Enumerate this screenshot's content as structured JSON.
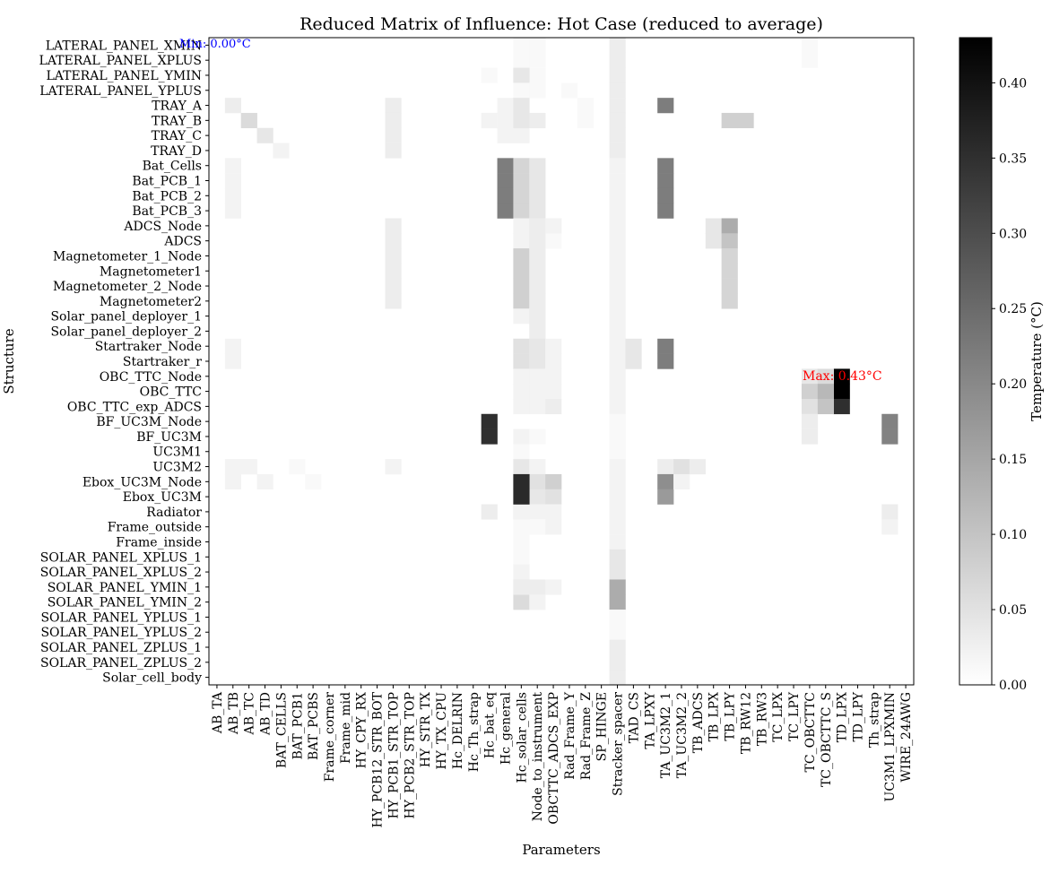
{
  "chart_data": {
    "type": "heatmap",
    "title": "Reduced Matrix of Influence: Hot Case (reduced to average)",
    "xlabel": "Parameters",
    "ylabel": "Structure",
    "colorbar_label": "Temperature (°C)",
    "colormap": "greys",
    "vmin": 0.0,
    "vmax": 0.43,
    "colorbar_ticks": [
      "0.00",
      "0.05",
      "0.10",
      "0.15",
      "0.20",
      "0.25",
      "0.30",
      "0.35",
      "0.40"
    ],
    "min_annotation": "Min: 0.00°C",
    "max_annotation": "Max: 0.43°C",
    "min_color": "#0000ff",
    "max_color": "#ff0000",
    "rows": [
      "LATERAL_PANEL_XMIN",
      "LATERAL_PANEL_XPLUS",
      "LATERAL_PANEL_YMIN",
      "LATERAL_PANEL_YPLUS",
      "TRAY_A",
      "TRAY_B",
      "TRAY_C",
      "TRAY_D",
      "Bat_Cells",
      "Bat_PCB_1",
      "Bat_PCB_2",
      "Bat_PCB_3",
      "ADCS_Node",
      "ADCS",
      "Magnetometer_1_Node",
      "Magnetometer1",
      "Magnetometer_2_Node",
      "Magnetometer2",
      "Solar_panel_deployer_1",
      "Solar_panel_deployer_2",
      "Startraker_Node",
      "Startraker_r",
      "OBC_TTC_Node",
      "OBC_TTC",
      "OBC_TTC_exp_ADCS",
      "BF_UC3M_Node",
      "BF_UC3M",
      "UC3M1",
      "UC3M2",
      "Ebox_UC3M_Node",
      "Ebox_UC3M",
      "Radiator",
      "Frame_outside",
      "Frame_inside",
      "SOLAR_PANEL_XPLUS_1",
      "SOLAR_PANEL_XPLUS_2",
      "SOLAR_PANEL_YMIN_1",
      "SOLAR_PANEL_YMIN_2",
      "SOLAR_PANEL_YPLUS_1",
      "SOLAR_PANEL_YPLUS_2",
      "SOLAR_PANEL_ZPLUS_1",
      "SOLAR_PANEL_ZPLUS_2",
      "Solar_cell_body"
    ],
    "columns": [
      "AB_TA",
      "AB_TB",
      "AB_TC",
      "AB_TD",
      "BAT_CELLS",
      "BAT_PCB1",
      "BAT_PCBS",
      "Frame_corner",
      "Frame_mid",
      "HY_CPY_RX",
      "HY_PCB12_STR_BOT",
      "HY_PCB1_STR_TOP",
      "HY_PCB2_STR_TOP",
      "HY_STR_TX",
      "HY_TX_CPU",
      "Hc_DELRIN",
      "Hc_Th_strap",
      "Hc_bat_eq",
      "Hc_general",
      "Hc_solar_cells",
      "Node_to_instrument",
      "OBCTTC_ADCS_EXP",
      "Rad_Frame_Y",
      "Rad_Frame_Z",
      "SP_HINGE",
      "Stracker_spacer",
      "TAD_CS",
      "TA_LPXY",
      "TA_UC3M2_1",
      "TA_UC3M2_2",
      "TB_ADCS",
      "TB_LPX",
      "TB_LPY",
      "TB_RW12",
      "TB_RW3",
      "TC_LPX",
      "TC_LPY",
      "TC_OBCTTC",
      "TC_OBCTTC_S",
      "TD_LPX",
      "TD_LPY",
      "Th_strap",
      "UC3M1_LPXMIN",
      "WIRE_24AWG"
    ],
    "cells": [
      [
        0,
        20,
        0.01
      ],
      [
        1,
        20,
        0.01
      ],
      [
        2,
        20,
        0.01
      ],
      [
        3,
        20,
        0.01
      ],
      [
        0,
        25,
        0.03
      ],
      [
        1,
        25,
        0.03
      ],
      [
        2,
        25,
        0.03
      ],
      [
        3,
        25,
        0.03
      ],
      [
        4,
        25,
        0.03
      ],
      [
        5,
        25,
        0.03
      ],
      [
        6,
        25,
        0.03
      ],
      [
        7,
        25,
        0.03
      ],
      [
        8,
        25,
        0.02
      ],
      [
        9,
        25,
        0.02
      ],
      [
        10,
        25,
        0.02
      ],
      [
        11,
        25,
        0.02
      ],
      [
        12,
        25,
        0.02
      ],
      [
        13,
        25,
        0.02
      ],
      [
        14,
        25,
        0.02
      ],
      [
        15,
        25,
        0.02
      ],
      [
        16,
        25,
        0.02
      ],
      [
        17,
        25,
        0.02
      ],
      [
        18,
        25,
        0.02
      ],
      [
        19,
        25,
        0.02
      ],
      [
        20,
        25,
        0.02
      ],
      [
        21,
        25,
        0.02
      ],
      [
        22,
        25,
        0.02
      ],
      [
        23,
        25,
        0.02
      ],
      [
        24,
        25,
        0.02
      ],
      [
        25,
        25,
        0.01
      ],
      [
        26,
        25,
        0.01
      ],
      [
        27,
        25,
        0.01
      ],
      [
        28,
        25,
        0.02
      ],
      [
        29,
        25,
        0.02
      ],
      [
        30,
        25,
        0.02
      ],
      [
        31,
        25,
        0.02
      ],
      [
        32,
        25,
        0.02
      ],
      [
        33,
        25,
        0.02
      ],
      [
        34,
        25,
        0.04
      ],
      [
        35,
        25,
        0.04
      ],
      [
        36,
        25,
        0.14
      ],
      [
        37,
        25,
        0.14
      ],
      [
        38,
        25,
        0.01
      ],
      [
        39,
        25,
        0.01
      ],
      [
        40,
        25,
        0.03
      ],
      [
        41,
        25,
        0.03
      ],
      [
        42,
        25,
        0.03
      ],
      [
        2,
        19,
        0.02
      ],
      [
        4,
        19,
        0.02
      ],
      [
        5,
        19,
        0.03
      ],
      [
        5,
        20,
        0.03
      ],
      [
        6,
        19,
        0.02
      ],
      [
        8,
        19,
        0.02
      ],
      [
        9,
        19,
        0.02
      ],
      [
        10,
        19,
        0.02
      ],
      [
        11,
        19,
        0.02
      ],
      [
        12,
        19,
        0.01
      ],
      [
        13,
        19,
        0.01
      ],
      [
        14,
        19,
        0.03
      ],
      [
        15,
        19,
        0.03
      ],
      [
        16,
        19,
        0.03
      ],
      [
        17,
        19,
        0.03
      ],
      [
        20,
        19,
        0.03
      ],
      [
        21,
        19,
        0.03
      ],
      [
        22,
        19,
        0.01
      ],
      [
        23,
        19,
        0.01
      ],
      [
        24,
        19,
        0.01
      ],
      [
        29,
        19,
        0.04
      ],
      [
        30,
        19,
        0.04
      ],
      [
        31,
        19,
        0.01
      ],
      [
        32,
        19,
        0.01
      ],
      [
        34,
        19,
        0.01
      ],
      [
        35,
        19,
        0.02
      ],
      [
        36,
        19,
        0.03
      ],
      [
        37,
        19,
        0.06
      ],
      [
        4,
        1,
        0.03
      ],
      [
        8,
        1,
        0.02
      ],
      [
        9,
        1,
        0.02
      ],
      [
        10,
        1,
        0.02
      ],
      [
        11,
        1,
        0.02
      ],
      [
        20,
        1,
        0.02
      ],
      [
        21,
        1,
        0.02
      ],
      [
        28,
        1,
        0.02
      ],
      [
        29,
        1,
        0.02
      ],
      [
        5,
        2,
        0.06
      ],
      [
        28,
        2,
        0.02
      ],
      [
        6,
        3,
        0.04
      ],
      [
        29,
        3,
        0.02
      ],
      [
        7,
        4,
        0.02
      ],
      [
        28,
        5,
        0.01
      ],
      [
        29,
        6,
        0.01
      ],
      [
        2,
        17,
        0.01
      ],
      [
        5,
        17,
        0.02
      ],
      [
        4,
        18,
        0.02
      ],
      [
        5,
        18,
        0.02
      ],
      [
        6,
        18,
        0.02
      ],
      [
        12,
        21,
        0.01
      ],
      [
        13,
        21,
        0.01
      ],
      [
        3,
        22,
        0.01
      ],
      [
        4,
        23,
        0.01
      ],
      [
        5,
        23,
        0.01
      ],
      [
        0,
        37,
        0.01
      ],
      [
        1,
        37,
        0.01
      ],
      [
        4,
        11,
        0.03
      ],
      [
        5,
        11,
        0.03
      ],
      [
        6,
        11,
        0.03
      ],
      [
        7,
        11,
        0.03
      ],
      [
        12,
        11,
        0.03
      ],
      [
        13,
        11,
        0.03
      ],
      [
        14,
        11,
        0.03
      ],
      [
        15,
        11,
        0.03
      ],
      [
        16,
        11,
        0.03
      ],
      [
        17,
        11,
        0.03
      ],
      [
        28,
        11,
        0.02
      ],
      [
        8,
        18,
        0.22
      ],
      [
        9,
        18,
        0.22
      ],
      [
        10,
        18,
        0.22
      ],
      [
        11,
        18,
        0.22
      ],
      [
        8,
        19,
        0.07
      ],
      [
        9,
        19,
        0.07
      ],
      [
        10,
        19,
        0.07
      ],
      [
        11,
        19,
        0.07
      ],
      [
        20,
        19,
        0.05
      ],
      [
        21,
        19,
        0.05
      ],
      [
        0,
        19,
        0.01
      ],
      [
        1,
        19,
        0.01
      ],
      [
        2,
        19,
        0.04
      ],
      [
        3,
        19,
        0.01
      ],
      [
        4,
        19,
        0.04
      ],
      [
        5,
        19,
        0.04
      ],
      [
        12,
        19,
        0.02
      ],
      [
        13,
        19,
        0.02
      ],
      [
        14,
        19,
        0.08
      ],
      [
        15,
        19,
        0.08
      ],
      [
        16,
        19,
        0.08
      ],
      [
        17,
        19,
        0.08
      ],
      [
        18,
        19,
        0.02
      ],
      [
        22,
        19,
        0.02
      ],
      [
        23,
        19,
        0.02
      ],
      [
        24,
        19,
        0.02
      ],
      [
        26,
        19,
        0.02
      ],
      [
        27,
        19,
        0.01
      ],
      [
        28,
        19,
        0.04
      ],
      [
        29,
        19,
        0.05
      ],
      [
        30,
        19,
        0.04
      ],
      [
        31,
        19,
        0.03
      ],
      [
        32,
        19,
        0.01
      ],
      [
        33,
        19,
        0.01
      ],
      [
        36,
        19,
        0.03
      ],
      [
        8,
        20,
        0.04
      ],
      [
        9,
        20,
        0.04
      ],
      [
        10,
        20,
        0.04
      ],
      [
        11,
        20,
        0.04
      ],
      [
        12,
        20,
        0.03
      ],
      [
        13,
        20,
        0.03
      ],
      [
        14,
        20,
        0.03
      ],
      [
        15,
        20,
        0.03
      ],
      [
        16,
        20,
        0.03
      ],
      [
        17,
        20,
        0.03
      ],
      [
        18,
        20,
        0.03
      ],
      [
        19,
        20,
        0.03
      ],
      [
        20,
        20,
        0.04
      ],
      [
        21,
        20,
        0.04
      ],
      [
        22,
        20,
        0.02
      ],
      [
        23,
        20,
        0.02
      ],
      [
        24,
        20,
        0.02
      ],
      [
        26,
        20,
        0.01
      ],
      [
        28,
        20,
        0.02
      ],
      [
        29,
        20,
        0.05
      ],
      [
        30,
        20,
        0.04
      ],
      [
        31,
        20,
        0.02
      ],
      [
        32,
        20,
        0.01
      ],
      [
        36,
        20,
        0.03
      ],
      [
        37,
        20,
        0.02
      ],
      [
        12,
        21,
        0.02
      ],
      [
        20,
        21,
        0.02
      ],
      [
        21,
        21,
        0.02
      ],
      [
        22,
        21,
        0.02
      ],
      [
        23,
        21,
        0.02
      ],
      [
        24,
        21,
        0.03
      ],
      [
        29,
        21,
        0.08
      ],
      [
        30,
        21,
        0.05
      ],
      [
        31,
        21,
        0.02
      ],
      [
        32,
        21,
        0.02
      ],
      [
        36,
        21,
        0.02
      ],
      [
        20,
        26,
        0.04
      ],
      [
        21,
        26,
        0.04
      ],
      [
        4,
        28,
        0.22
      ],
      [
        8,
        28,
        0.22
      ],
      [
        9,
        28,
        0.22
      ],
      [
        10,
        28,
        0.22
      ],
      [
        11,
        28,
        0.22
      ],
      [
        20,
        28,
        0.22
      ],
      [
        21,
        28,
        0.22
      ],
      [
        28,
        28,
        0.03
      ],
      [
        29,
        28,
        0.19
      ],
      [
        30,
        28,
        0.17
      ],
      [
        28,
        29,
        0.05
      ],
      [
        29,
        29,
        0.02
      ],
      [
        28,
        30,
        0.03
      ],
      [
        12,
        31,
        0.04
      ],
      [
        13,
        31,
        0.04
      ],
      [
        12,
        32,
        0.14
      ],
      [
        13,
        32,
        0.1
      ],
      [
        14,
        32,
        0.07
      ],
      [
        15,
        32,
        0.07
      ],
      [
        16,
        32,
        0.07
      ],
      [
        17,
        32,
        0.07
      ],
      [
        5,
        33,
        0.08
      ],
      [
        5,
        32,
        0.08
      ],
      [
        25,
        17,
        0.35
      ],
      [
        26,
        17,
        0.35
      ],
      [
        22,
        39,
        0.43
      ],
      [
        23,
        39,
        0.43
      ],
      [
        24,
        39,
        0.35
      ],
      [
        22,
        37,
        0.04
      ],
      [
        23,
        37,
        0.08
      ],
      [
        24,
        37,
        0.05
      ],
      [
        22,
        38,
        0.06
      ],
      [
        23,
        38,
        0.12
      ],
      [
        24,
        38,
        0.1
      ],
      [
        25,
        37,
        0.03
      ],
      [
        26,
        37,
        0.03
      ],
      [
        25,
        42,
        0.21
      ],
      [
        26,
        42,
        0.21
      ],
      [
        31,
        17,
        0.03
      ],
      [
        31,
        19,
        0.02
      ],
      [
        31,
        42,
        0.03
      ],
      [
        32,
        42,
        0.02
      ],
      [
        29,
        19,
        0.36
      ],
      [
        30,
        19,
        0.36
      ]
    ]
  }
}
